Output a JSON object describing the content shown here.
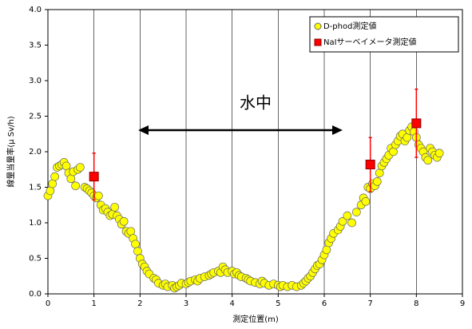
{
  "chart_data": {
    "type": "scatter",
    "xlabel": "測定位置(m)",
    "ylabel": "線量当量率(μ Sv/h)",
    "annotation": "水中",
    "xlim": [
      0,
      9
    ],
    "xticks": [
      0,
      1,
      2,
      3,
      4,
      5,
      6,
      7,
      8,
      9
    ],
    "ylim": [
      0,
      4
    ],
    "yticks": [
      {
        "value": 0,
        "label": "0.0"
      },
      0.5,
      {
        "value": 1,
        "label": "1.0"
      },
      1.5,
      {
        "value": 2,
        "label": "2.0"
      },
      2.5,
      {
        "value": 3,
        "label": "3.0"
      },
      3.5,
      {
        "value": 4,
        "label": "4.0"
      }
    ],
    "grid": true,
    "legend": "upper right",
    "series": [
      {
        "name": "D-phod測定値",
        "color": "#ffff00",
        "marker": "circle",
        "x": [
          0,
          0.05,
          0.1,
          0.15,
          0.2,
          0.25,
          0.3,
          0.35,
          0.4,
          0.45,
          0.5,
          0.55,
          0.6,
          0.65,
          0.7,
          0.8,
          0.85,
          0.9,
          0.95,
          1.0,
          1.05,
          1.1,
          1.15,
          1.2,
          1.25,
          1.3,
          1.35,
          1.4,
          1.45,
          1.5,
          1.55,
          1.6,
          1.65,
          1.7,
          1.75,
          1.8,
          1.85,
          1.9,
          1.95,
          2.0,
          2.05,
          2.1,
          2.15,
          2.2,
          2.3,
          2.35,
          2.4,
          2.5,
          2.55,
          2.6,
          2.7,
          2.75,
          2.8,
          2.85,
          2.9,
          3.0,
          3.05,
          3.1,
          3.2,
          3.25,
          3.3,
          3.4,
          3.5,
          3.55,
          3.6,
          3.7,
          3.75,
          3.8,
          3.85,
          3.9,
          4.0,
          4.05,
          4.1,
          4.15,
          4.2,
          4.3,
          4.35,
          4.4,
          4.5,
          4.6,
          4.65,
          4.7,
          4.8,
          4.9,
          5.0,
          5.05,
          5.1,
          5.2,
          5.3,
          5.4,
          5.5,
          5.55,
          5.6,
          5.65,
          5.7,
          5.75,
          5.8,
          5.85,
          5.9,
          5.95,
          6.0,
          6.05,
          6.1,
          6.15,
          6.2,
          6.3,
          6.35,
          6.4,
          6.5,
          6.6,
          6.7,
          6.8,
          6.85,
          6.9,
          6.95,
          7.0,
          7.05,
          7.1,
          7.15,
          7.2,
          7.25,
          7.3,
          7.35,
          7.4,
          7.45,
          7.5,
          7.55,
          7.6,
          7.65,
          7.7,
          7.75,
          7.8,
          7.85,
          7.9,
          7.95,
          8.0,
          8.05,
          8.1,
          8.15,
          8.2,
          8.25,
          8.3,
          8.35,
          8.4,
          8.45,
          8.5
        ],
        "values": [
          1.38,
          1.45,
          1.55,
          1.65,
          1.78,
          1.8,
          1.82,
          1.85,
          1.8,
          1.7,
          1.62,
          1.72,
          1.52,
          1.75,
          1.78,
          1.5,
          1.48,
          1.45,
          1.42,
          1.38,
          1.35,
          1.38,
          1.25,
          1.18,
          1.2,
          1.15,
          1.1,
          1.12,
          1.22,
          1.1,
          1.05,
          0.98,
          1.02,
          0.88,
          0.85,
          0.88,
          0.78,
          0.7,
          0.6,
          0.5,
          0.42,
          0.38,
          0.32,
          0.28,
          0.22,
          0.2,
          0.15,
          0.12,
          0.14,
          0.1,
          0.12,
          0.08,
          0.1,
          0.12,
          0.15,
          0.14,
          0.16,
          0.18,
          0.2,
          0.18,
          0.22,
          0.24,
          0.26,
          0.28,
          0.3,
          0.32,
          0.3,
          0.38,
          0.34,
          0.3,
          0.32,
          0.28,
          0.3,
          0.26,
          0.24,
          0.22,
          0.2,
          0.18,
          0.16,
          0.14,
          0.18,
          0.15,
          0.12,
          0.14,
          0.12,
          0.1,
          0.12,
          0.1,
          0.12,
          0.1,
          0.12,
          0.15,
          0.18,
          0.22,
          0.25,
          0.3,
          0.35,
          0.4,
          0.42,
          0.48,
          0.55,
          0.62,
          0.72,
          0.78,
          0.85,
          0.9,
          0.95,
          1.02,
          1.1,
          1.0,
          1.15,
          1.25,
          1.35,
          1.3,
          1.5,
          1.48,
          1.55,
          1.52,
          1.58,
          1.7,
          1.8,
          1.85,
          1.9,
          1.95,
          2.05,
          2.0,
          2.1,
          2.15,
          2.22,
          2.25,
          2.15,
          2.2,
          2.3,
          2.35,
          2.28,
          2.2,
          2.1,
          2.05,
          2.0,
          1.92,
          1.88,
          2.05,
          2.0,
          1.95,
          1.92,
          1.98
        ]
      },
      {
        "name": "NaIサーベイメータ測定値",
        "color": "#ff0000",
        "marker": "square",
        "x": [
          1,
          7,
          8
        ],
        "values": [
          1.65,
          1.82,
          2.4
        ],
        "errors": [
          0.33,
          0.38,
          0.48
        ]
      }
    ]
  }
}
